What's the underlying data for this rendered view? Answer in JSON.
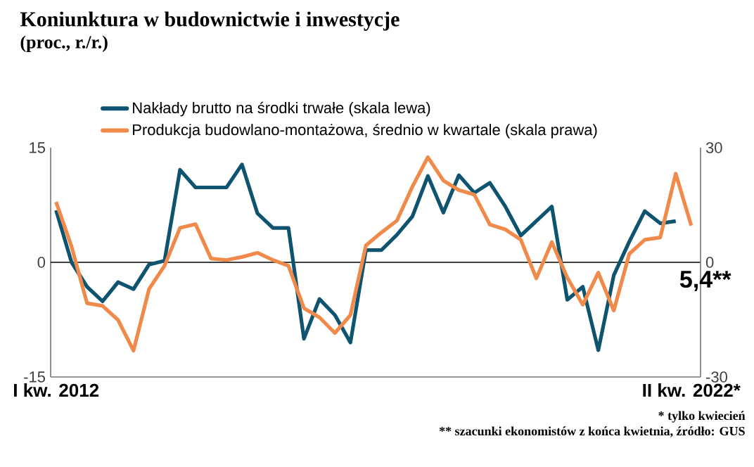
{
  "chart_data": {
    "type": "line",
    "title": "Koniunktura w budownictwie i inwestycje",
    "subtitle": "(proc., r./r.)",
    "categories": [
      "I kw. 2012",
      null,
      null,
      null,
      null,
      null,
      null,
      null,
      null,
      null,
      null,
      null,
      null,
      null,
      null,
      null,
      null,
      null,
      null,
      null,
      null,
      null,
      null,
      null,
      null,
      null,
      null,
      null,
      null,
      null,
      null,
      null,
      null,
      null,
      null,
      null,
      null,
      null,
      null,
      null,
      null,
      "II kw. 2022*"
    ],
    "series": [
      {
        "name": "Nakłady brutto na środki trwałe (skala lewa)",
        "color": "#0e5470",
        "values": [
          6.8,
          0,
          -3.2,
          -5.1,
          -2.6,
          -3.5,
          -0.3,
          0.2,
          12.1,
          9.8,
          9.8,
          9.8,
          12.8,
          6.4,
          4.5,
          4.5,
          -10,
          -4.8,
          -6.9,
          -10.5,
          1.6,
          1.6,
          3.6,
          6.0,
          11.3,
          6.5,
          11.4,
          9.1,
          10.4,
          7.3,
          3.5,
          5.4,
          7.3,
          -4.9,
          -3.2,
          -11.5,
          -1.7,
          2.7,
          6.7,
          5.1,
          5.4,
          null
        ]
      },
      {
        "name": "Produkcja budowlano-montażowa, średnio w kwartale (skala prawa)",
        "color": "#f08a4b",
        "axis": "y2",
        "values": [
          15.8,
          4.1,
          -10.7,
          -11.4,
          -15.1,
          -23.1,
          -7.0,
          -0.9,
          9.0,
          10.0,
          1.0,
          0.6,
          1.4,
          2.5,
          0.6,
          -0.9,
          -12.0,
          -14.4,
          -18.5,
          -13.8,
          4.4,
          7.8,
          10.9,
          19.8,
          27.5,
          21.4,
          18.9,
          17.7,
          9.9,
          8.6,
          5.9,
          -4.2,
          5.3,
          -4.0,
          -11.1,
          -2.7,
          -12.6,
          2.2,
          5.9,
          6.5,
          23.2,
          9.6
        ]
      }
    ],
    "ylim": [
      -15,
      15
    ],
    "yticks": [
      -15,
      0,
      15
    ],
    "y2lim": [
      -30,
      30
    ],
    "y2ticks": [
      -30,
      0,
      30
    ],
    "ref_lines": [
      {
        "axis": "y",
        "value": 0,
        "color": "#000000"
      }
    ],
    "legend": "top left",
    "annotations": [
      "5,4**",
      "* tylko kwiecień",
      "** szacunki ekonomistów z końca kwietnia, źródło: GUS"
    ]
  }
}
